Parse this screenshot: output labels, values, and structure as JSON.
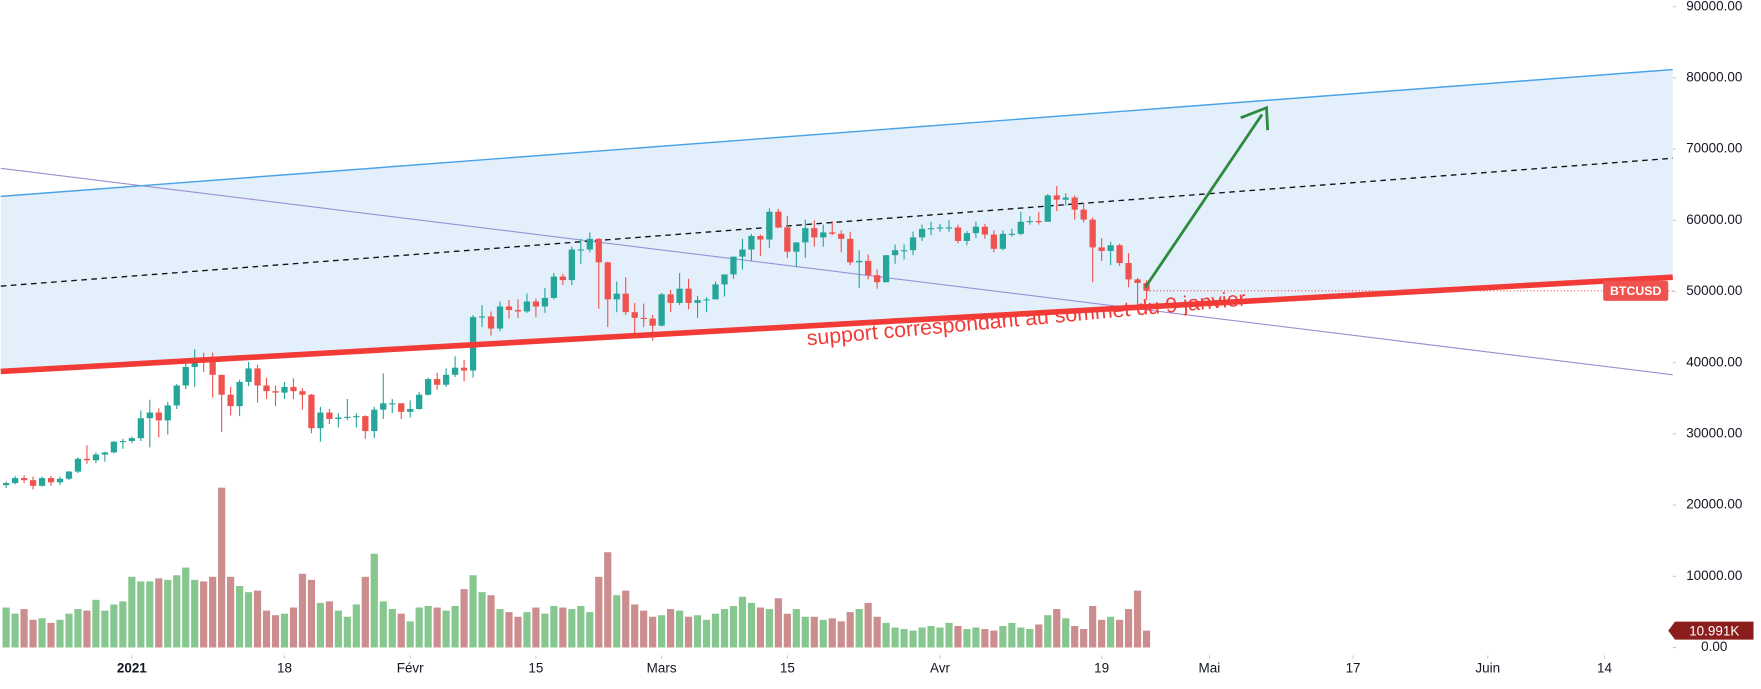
{
  "chart_data": {
    "type": "candlestick",
    "symbol": "BTCUSD",
    "annotation": "support correspondant au sommet du 9 janvier",
    "up_color": "#26a69a",
    "down_color": "#ef5350",
    "ylim": [
      0,
      90000
    ],
    "yticks": [
      {
        "value": 0,
        "label": "0.00"
      },
      {
        "value": 10000,
        "label": "10000.00"
      },
      {
        "value": 20000,
        "label": "20000.00"
      },
      {
        "value": 30000,
        "label": "30000.00"
      },
      {
        "value": 40000,
        "label": "40000.00"
      },
      {
        "value": 50000,
        "label": "50000.00"
      },
      {
        "value": 60000,
        "label": "60000.00"
      },
      {
        "value": 70000,
        "label": "70000.00"
      },
      {
        "value": 80000,
        "label": "80000.00"
      },
      {
        "value": 90000,
        "label": "90000.00"
      }
    ],
    "xlim": [
      -0.6,
      185.6
    ],
    "xticks": [
      {
        "value": 14,
        "label": "2021"
      },
      {
        "value": 31,
        "label": "18"
      },
      {
        "value": 45,
        "label": "Févr"
      },
      {
        "value": 59,
        "label": "15"
      },
      {
        "value": 73,
        "label": "Mars"
      },
      {
        "value": 87,
        "label": "15"
      },
      {
        "value": 104,
        "label": "Avr"
      },
      {
        "value": 122,
        "label": "19"
      },
      {
        "value": 134,
        "label": "Mai"
      },
      {
        "value": 150,
        "label": "17"
      },
      {
        "value": 165,
        "label": "Juin"
      },
      {
        "value": 178,
        "label": "14"
      }
    ],
    "open": [
      22800,
      23100,
      23800,
      23500,
      22700,
      23800,
      23200,
      23700,
      24700,
      26500,
      26300,
      27100,
      27400,
      28900,
      29000,
      29400,
      32200,
      33000,
      31900,
      34000,
      36800,
      39400,
      40700,
      40300,
      38300,
      35500,
      33900,
      37300,
      39200,
      36800,
      36000,
      35800,
      36600,
      36000,
      35500,
      30800,
      33000,
      32100,
      32300,
      32400,
      32500,
      30400,
      33400,
      34300,
      34300,
      33100,
      33500,
      35500,
      37700,
      36900,
      38300,
      39300,
      38900,
      46400,
      46500,
      44800,
      47900,
      47400,
      47200,
      48600,
      47900,
      49100,
      52100,
      51600,
      55900,
      55900,
      57400,
      54100,
      48900,
      49700,
      47100,
      46300,
      46200,
      45200,
      49600,
      48400,
      50400,
      48400,
      48800,
      48900,
      51000,
      52400,
      54900,
      55900,
      57800,
      57300,
      61200,
      59000,
      55600,
      56900,
      58900,
      57600,
      58300,
      58100,
      57400,
      54100,
      54300,
      52300,
      51300,
      55100,
      55800,
      55800,
      57600,
      58800,
      58900,
      59000,
      59000,
      57100,
      58200,
      59100,
      58000,
      56000,
      58100,
      58100,
      59800,
      59900,
      59800,
      63500,
      62900,
      63200,
      61500,
      60100,
      56200,
      55700,
      56500,
      54000,
      51700,
      51200
    ],
    "high": [
      23300,
      24100,
      24200,
      24000,
      24000,
      24100,
      24000,
      24800,
      26700,
      28400,
      27400,
      27500,
      29000,
      29300,
      29600,
      33300,
      34800,
      33600,
      34500,
      37000,
      40000,
      41900,
      41400,
      41400,
      38300,
      36600,
      37600,
      40100,
      39700,
      37900,
      36800,
      37300,
      37800,
      36400,
      35600,
      33800,
      33500,
      32900,
      34900,
      32900,
      32600,
      33800,
      38500,
      34900,
      34300,
      34700,
      35900,
      37900,
      38600,
      39200,
      40900,
      40400,
      46700,
      48100,
      47200,
      48600,
      48800,
      48900,
      49700,
      49000,
      50500,
      52600,
      52500,
      56300,
      57400,
      58300,
      57500,
      54200,
      51400,
      52000,
      48400,
      48300,
      46700,
      49800,
      50200,
      52600,
      51800,
      49400,
      49200,
      51400,
      52400,
      54900,
      57400,
      58100,
      58000,
      61700,
      61600,
      60600,
      56900,
      60100,
      60000,
      59400,
      59900,
      58600,
      58400,
      55800,
      55200,
      53100,
      55100,
      56600,
      56600,
      58400,
      59400,
      59800,
      59500,
      60000,
      59400,
      58500,
      59800,
      59500,
      58600,
      58600,
      58800,
      61200,
      60600,
      61200,
      63700,
      64800,
      63800,
      63500,
      62500,
      60400,
      57500,
      57000,
      56700,
      55400,
      51900,
      51600
    ],
    "low": [
      22400,
      22900,
      23100,
      22200,
      22600,
      22700,
      22800,
      23500,
      24500,
      25800,
      25900,
      26100,
      27300,
      27900,
      28700,
      29000,
      28100,
      29500,
      29900,
      33500,
      36300,
      36600,
      38700,
      35100,
      30300,
      32600,
      32500,
      36700,
      34400,
      34900,
      33900,
      34900,
      34900,
      33400,
      30100,
      28900,
      31400,
      30900,
      31900,
      30900,
      29300,
      29400,
      32100,
      32900,
      32100,
      32300,
      33400,
      35400,
      36200,
      36600,
      38000,
      37400,
      37900,
      45000,
      43800,
      44400,
      46200,
      46300,
      47000,
      46400,
      47000,
      48900,
      50900,
      50900,
      53900,
      55500,
      47600,
      45000,
      47100,
      46700,
      44100,
      45000,
      43100,
      45100,
      47100,
      48100,
      47500,
      46300,
      47100,
      48900,
      49300,
      51800,
      53100,
      54300,
      55000,
      56100,
      58900,
      54700,
      53400,
      54700,
      56300,
      56300,
      57900,
      55500,
      53700,
      50500,
      51700,
      50400,
      51300,
      53900,
      54500,
      55100,
      57100,
      57900,
      58400,
      58400,
      56800,
      56500,
      57500,
      57400,
      55500,
      55800,
      57700,
      57900,
      59400,
      59400,
      59800,
      61300,
      62100,
      60100,
      59700,
      51300,
      54300,
      53700,
      53600,
      50600,
      47500,
      48800
    ],
    "close": [
      23100,
      23800,
      23500,
      22700,
      23800,
      23200,
      23700,
      24700,
      26500,
      26300,
      27100,
      27400,
      28900,
      29000,
      29400,
      32200,
      33000,
      31900,
      34000,
      36800,
      39400,
      40700,
      40300,
      38300,
      35500,
      33900,
      37300,
      39200,
      36800,
      36000,
      35800,
      36600,
      36000,
      35500,
      30800,
      33000,
      32100,
      32300,
      32400,
      32500,
      30400,
      33400,
      34300,
      34300,
      33100,
      33500,
      35500,
      37700,
      36900,
      38300,
      39300,
      38900,
      46400,
      46500,
      44800,
      47900,
      47400,
      47200,
      48600,
      47900,
      49100,
      52100,
      51600,
      55900,
      55900,
      57400,
      54100,
      48900,
      49700,
      47100,
      46300,
      46200,
      45200,
      49600,
      48400,
      50400,
      48400,
      48800,
      48900,
      51000,
      52400,
      54900,
      55900,
      57800,
      57300,
      61200,
      59000,
      55600,
      56900,
      58900,
      57600,
      58300,
      58100,
      57400,
      54100,
      54300,
      52300,
      51300,
      55100,
      55800,
      55800,
      57600,
      58800,
      58900,
      59000,
      59000,
      57100,
      58200,
      59100,
      58000,
      56000,
      58100,
      58100,
      59800,
      59900,
      59800,
      63500,
      62900,
      63200,
      61500,
      60100,
      56200,
      55700,
      56500,
      54000,
      51700,
      51200,
      50100
    ],
    "volume": {
      "up_color": "#86c78f",
      "down_color": "#cb8d8e",
      "label_color": "#8b1d1d",
      "ylim": [
        0,
        417
      ],
      "values": [
        26,
        22,
        25,
        18,
        19,
        16,
        18,
        22,
        25,
        24,
        31,
        24,
        28,
        30,
        46,
        43,
        43,
        45,
        44,
        47,
        52,
        44,
        43,
        46,
        104,
        46,
        40,
        36,
        37,
        24,
        21,
        22,
        26,
        48,
        44,
        29,
        30,
        24,
        20,
        28,
        46,
        61,
        30,
        25,
        22,
        17,
        26,
        27,
        26,
        24,
        27,
        38,
        47,
        36,
        34,
        25,
        23,
        20,
        23,
        26,
        22,
        27,
        26,
        25,
        27,
        23,
        46,
        62,
        34,
        37,
        28,
        24,
        20,
        21,
        25,
        24,
        20,
        21,
        18,
        22,
        25,
        27,
        33,
        29,
        26,
        25,
        32,
        22,
        25,
        20,
        20,
        18,
        19,
        17,
        23,
        25,
        29,
        20,
        16,
        13,
        12,
        11,
        13,
        14,
        13,
        16,
        14,
        12,
        13,
        12,
        11,
        14,
        16,
        13,
        12,
        15,
        21,
        25,
        19,
        14,
        12,
        27,
        18,
        20,
        18,
        25,
        37,
        10.991
      ],
      "last_label": "10.991K"
    }
  }
}
